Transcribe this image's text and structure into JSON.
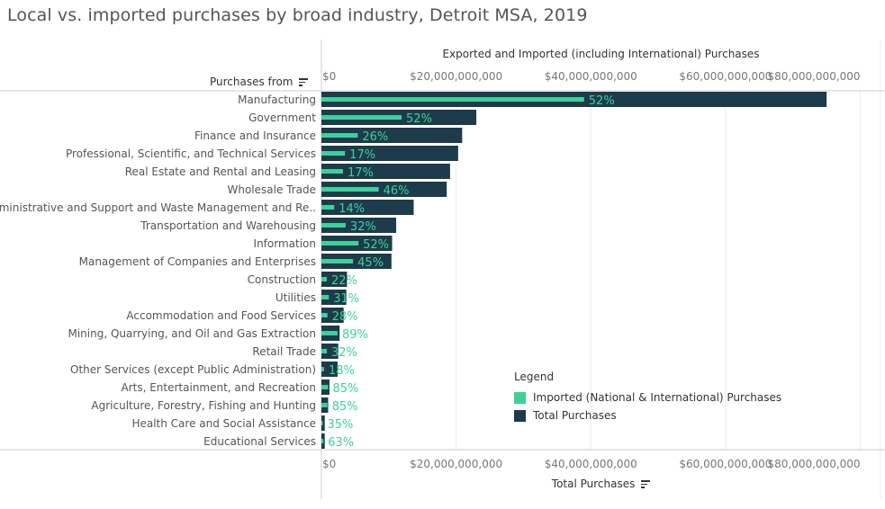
{
  "colors": {
    "imported": "#3ed19a",
    "total": "#1d3b4b",
    "pct_label": "#3ed19a",
    "grid": "#ececec",
    "axis": "#cccccc",
    "text": "#555555"
  },
  "header": {
    "title": "Local vs. imported purchases by broad industry, Detroit MSA, 2019",
    "top_axis_title": "Exported and Imported (including International) Purchases",
    "row_header": "Purchases from",
    "bottom_axis_title": "Total Purchases"
  },
  "legend": {
    "title": "Legend",
    "items": [
      {
        "label": "Imported (National & International) Purchases",
        "color": "#3ed19a"
      },
      {
        "label": "Total Purchases",
        "color": "#1d3b4b"
      }
    ]
  },
  "chart_data": {
    "type": "bar",
    "orientation": "horizontal",
    "title": "Local vs. imported purchases by broad industry, Detroit MSA, 2019",
    "xlabel_top": "Exported and Imported (including International) Purchases",
    "xlabel_bottom": "Total Purchases",
    "ylabel": "Purchases from",
    "xlim": [
      0,
      83000000000
    ],
    "ticks": [
      {
        "value": 0,
        "label": "$0"
      },
      {
        "value": 20000000000,
        "label": "$20,000,000,000"
      },
      {
        "value": 40000000000,
        "label": "$40,000,000,000"
      },
      {
        "value": 60000000000,
        "label": "$60,000,000,000"
      },
      {
        "value": 80000000000,
        "label": "$80,000,000,000"
      }
    ],
    "categories": [
      "Manufacturing",
      "Government",
      "Finance and Insurance",
      "Professional, Scientific, and Technical Services",
      "Real Estate and Rental and Leasing",
      "Wholesale Trade",
      "Administrative and Support and Waste Management and Re..",
      "Transportation and Warehousing",
      "Information",
      "Management of Companies and Enterprises",
      "Construction",
      "Utilities",
      "Accommodation and Food Services",
      "Mining, Quarrying, and Oil and Gas Extraction",
      "Retail Trade",
      "Other Services (except Public Administration)",
      "Arts, Entertainment, and Recreation",
      "Agriculture, Forestry, Fishing and Hunting",
      "Health Care and Social Assistance",
      "Educational Services"
    ],
    "series": [
      {
        "name": "Total Purchases",
        "values": [
          75000000000,
          23000000000,
          20900000000,
          20300000000,
          19100000000,
          18600000000,
          13700000000,
          11100000000,
          10500000000,
          10400000000,
          3800000000,
          3700000000,
          3300000000,
          2700000000,
          2500000000,
          2400000000,
          1200000000,
          1000000000,
          500000000,
          500000000
        ]
      },
      {
        "name": "Imported (National & International) Purchases",
        "values": [
          39000000000,
          11900000000,
          5400000000,
          3500000000,
          3200000000,
          8500000000,
          1900000000,
          3600000000,
          5500000000,
          4700000000,
          800000000,
          1100000000,
          900000000,
          2400000000,
          800000000,
          400000000,
          1000000000,
          900000000,
          200000000,
          300000000
        ]
      }
    ],
    "data_labels": [
      "52%",
      "52%",
      "26%",
      "17%",
      "17%",
      "46%",
      "14%",
      "32%",
      "52%",
      "45%",
      "22%",
      "31%",
      "28%",
      "89%",
      "32%",
      "18%",
      "85%",
      "85%",
      "35%",
      "63%"
    ]
  }
}
